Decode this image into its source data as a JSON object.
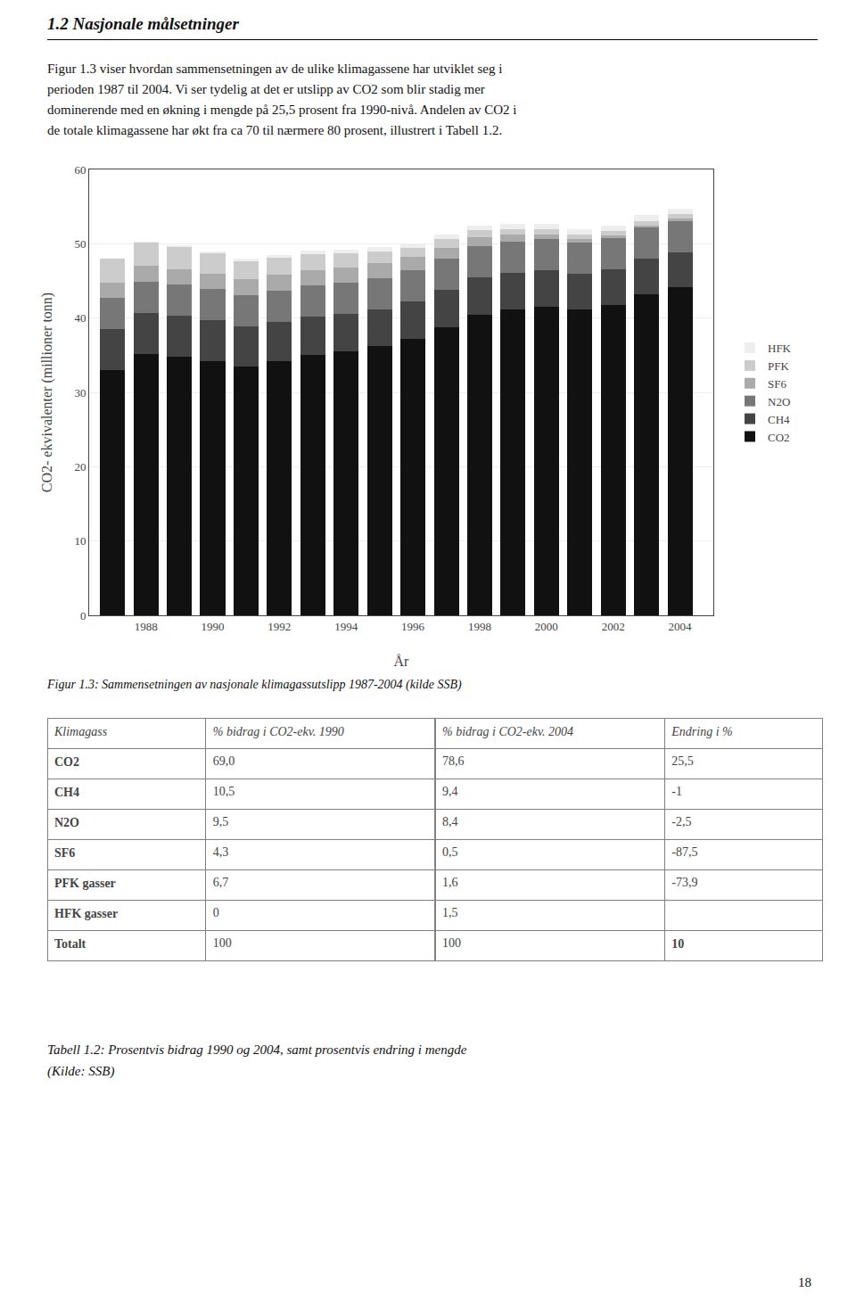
{
  "heading": "1.2 Nasjonale målsetninger",
  "paragraph": [
    "Figur 1.3 viser hvordan sammensetningen av de ulike klimagassene har utviklet seg i",
    "perioden 1987 til 2004. Vi ser tydelig at det er utslipp av CO2 som blir stadig mer",
    "dominerende med en økning i mengde på 25,5 prosent fra 1990-nivå. Andelen av CO2 i",
    "de totale klimagassene har økt fra ca 70 til nærmere 80 prosent, illustrert i Tabell 1.2."
  ],
  "page_number": "18",
  "chart_data": [
    {
      "type": "bar",
      "stacked": true,
      "caption": "Figur 1.3: Sammensetningen av nasjonale klimagassutslipp 1987-2004 (kilde SSB)",
      "x": [
        1987,
        1988,
        1989,
        1990,
        1991,
        1992,
        1993,
        1994,
        1995,
        1996,
        1997,
        1998,
        1999,
        2000,
        2001,
        2002,
        2003,
        2004
      ],
      "series": [
        {
          "name": "CO2",
          "color": "#111111",
          "values": [
            33.0,
            35.2,
            34.8,
            34.2,
            33.5,
            34.2,
            35.0,
            35.5,
            36.2,
            37.2,
            38.8,
            40.5,
            41.2,
            41.5,
            41.2,
            41.8,
            43.2,
            44.2
          ]
        },
        {
          "name": "CH4",
          "color": "#444444",
          "values": [
            5.5,
            5.5,
            5.5,
            5.5,
            5.4,
            5.3,
            5.2,
            5.1,
            5.0,
            5.0,
            5.0,
            5.0,
            4.9,
            4.9,
            4.8,
            4.8,
            4.8,
            4.7
          ]
        },
        {
          "name": "N2O",
          "color": "#777777",
          "values": [
            4.2,
            4.2,
            4.2,
            4.2,
            4.2,
            4.2,
            4.2,
            4.2,
            4.2,
            4.2,
            4.2,
            4.2,
            4.2,
            4.2,
            4.2,
            4.2,
            4.2,
            4.2
          ]
        },
        {
          "name": "SF6",
          "color": "#aaaaaa",
          "values": [
            2.1,
            2.1,
            2.1,
            2.1,
            2.1,
            2.1,
            2.1,
            2.0,
            2.0,
            1.8,
            1.5,
            1.2,
            0.9,
            0.6,
            0.4,
            0.3,
            0.28,
            0.25
          ]
        },
        {
          "name": "PFK",
          "color": "#cccccc",
          "values": [
            3.2,
            3.2,
            3.0,
            2.8,
            2.5,
            2.3,
            2.1,
            1.9,
            1.6,
            1.3,
            1.1,
            0.9,
            0.8,
            0.75,
            0.7,
            0.65,
            0.62,
            0.6
          ]
        },
        {
          "name": "HFK",
          "color": "#eeeeee",
          "values": [
            0.0,
            0.05,
            0.1,
            0.2,
            0.3,
            0.4,
            0.45,
            0.5,
            0.55,
            0.6,
            0.62,
            0.65,
            0.68,
            0.7,
            0.72,
            0.75,
            0.78,
            0.82
          ]
        }
      ],
      "xlabel": "År",
      "ylabel": "CO2- ekvivalenter (millioner tonn)",
      "xlim": [
        1986.3,
        2005.0
      ],
      "xticks": [
        1988,
        1990,
        1992,
        1994,
        1996,
        1998,
        2000,
        2002,
        2004
      ],
      "ylim": [
        0,
        60
      ],
      "yticks": [
        0,
        10,
        20,
        30,
        40,
        50,
        60
      ],
      "grid": "y",
      "legend": "right"
    },
    {
      "type": "table",
      "columns": [
        "Klimagass",
        "% bidrag i CO2-ekv. 1990",
        "% bidrag i CO2-ekv. 2004",
        "Endring i %"
      ],
      "rows": [
        [
          "CO2",
          "69,0",
          "78,6",
          "25,5"
        ],
        [
          "CH4",
          "10,5",
          "9,4",
          "-1"
        ],
        [
          "N2O",
          "9,5",
          "8,4",
          "-2,5"
        ],
        [
          "SF6",
          "4,3",
          "0,5",
          "-87,5"
        ],
        [
          "PFK gasser",
          "6,7",
          "1,6",
          "-73,9"
        ],
        [
          "HFK gasser",
          "0",
          "1,5",
          null
        ],
        [
          "Totalt",
          "100",
          "100",
          "10"
        ]
      ],
      "caption": [
        "Tabell 1.2: Prosentvis bidrag 1990 og 2004, samt prosentvis endring i mengde",
        "(Kilde: SSB)"
      ]
    }
  ]
}
